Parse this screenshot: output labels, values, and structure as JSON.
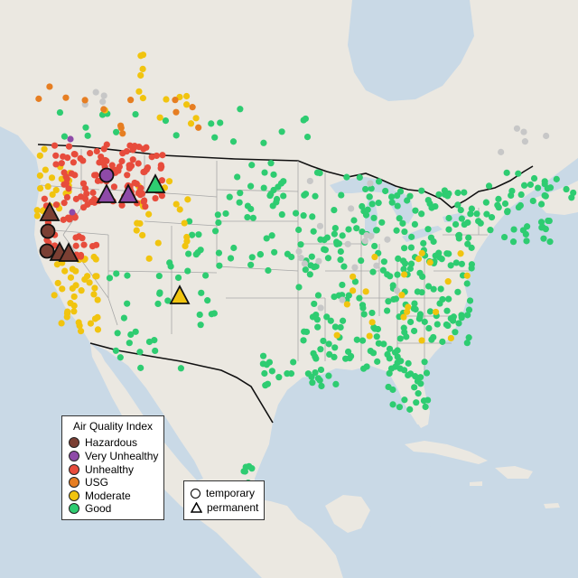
{
  "colors": {
    "water": "#c9d9e6",
    "land": "#ebe8e1",
    "land_snow": "#f3f2ef",
    "border": "#000000",
    "state_line": "#9a9a9a",
    "hazardous": "#7b3f33",
    "very_unhealthy": "#8e4aa8",
    "unhealthy": "#e74c3c",
    "usg": "#e67e22",
    "moderate": "#f1c40f",
    "good": "#2ecc71",
    "nodata": "#c7c7c7"
  },
  "legend_aqi": {
    "title": "Air Quality Index",
    "items": [
      {
        "label": "Hazardous",
        "color_key": "hazardous"
      },
      {
        "label": "Very Unhealthy",
        "color_key": "very_unhealthy"
      },
      {
        "label": "Unhealthy",
        "color_key": "unhealthy"
      },
      {
        "label": "USG",
        "color_key": "usg"
      },
      {
        "label": "Moderate",
        "color_key": "moderate"
      },
      {
        "label": "Good",
        "color_key": "good"
      }
    ]
  },
  "legend_type": {
    "items": [
      {
        "label": "temporary",
        "shape": "circle"
      },
      {
        "label": "permanent",
        "shape": "triangle"
      }
    ]
  }
}
